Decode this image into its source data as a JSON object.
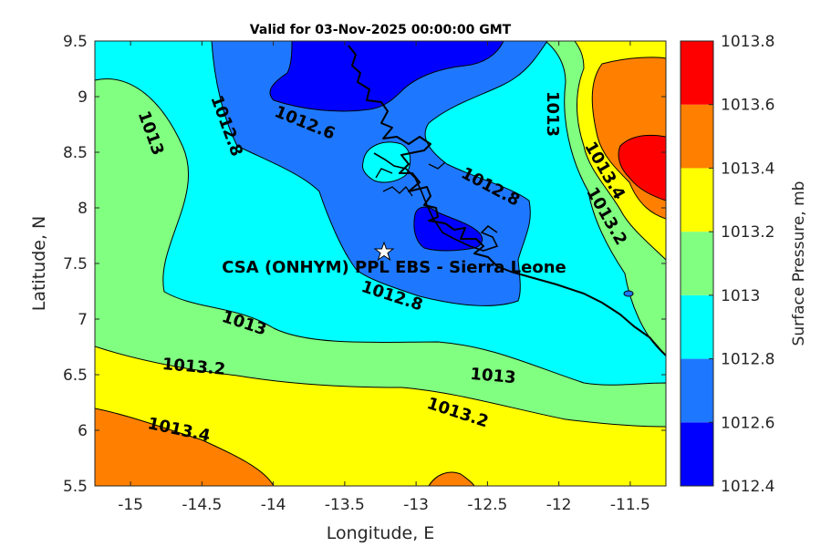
{
  "title": "Valid for 03-Nov-2025 00:00:00 GMT",
  "xlabel": "Longitude, E",
  "ylabel": "Latitude, N",
  "colorbar_label": "Surface Pressure, mb",
  "site_label": "CSA (ONHYM) PPL EBS  - Sierra Leone",
  "map_data": {
    "type": "filled-contour",
    "variable": "Surface Pressure",
    "units": "mb",
    "xlim": [
      -15.25,
      -11.25
    ],
    "ylim": [
      5.5,
      9.5
    ],
    "x_ticks": [
      -15,
      -14.5,
      -14,
      -13.5,
      -13,
      -12.5,
      -12,
      -11.5
    ],
    "x_tick_labels": [
      "-15",
      "-14.5",
      "-14",
      "-13.5",
      "-13",
      "-12.5",
      "-12",
      "-11.5"
    ],
    "y_ticks": [
      5.5,
      6,
      6.5,
      7,
      7.5,
      8,
      8.5,
      9,
      9.5
    ],
    "y_tick_labels": [
      "5.5",
      "6",
      "6.5",
      "7",
      "7.5",
      "8",
      "8.5",
      "9",
      "9.5"
    ],
    "contour_levels": [
      1012.4,
      1012.6,
      1012.8,
      1013,
      1013.2,
      1013.4,
      1013.6,
      1013.8
    ],
    "level_colors": [
      "#0000ff",
      "#1e78ff",
      "#00ffff",
      "#80ff80",
      "#ffff00",
      "#ff8000",
      "#ff0000",
      "#800000"
    ],
    "colorbar_tick_labels": [
      "1013.8",
      "1013.6",
      "1013.4",
      "1013.2",
      "1013",
      "1012.8",
      "1012.6",
      "1012.4"
    ],
    "contour_labels": [
      "1013",
      "1012.8",
      "1012.6",
      "1013",
      "1012.8",
      "1013.4",
      "1013.2",
      "1012.8",
      "1013",
      "1013.2",
      "1013",
      "1013.2",
      "1013.4"
    ],
    "site_marker": {
      "lon": -13.22,
      "lat": 7.6,
      "symbol": "star"
    }
  }
}
